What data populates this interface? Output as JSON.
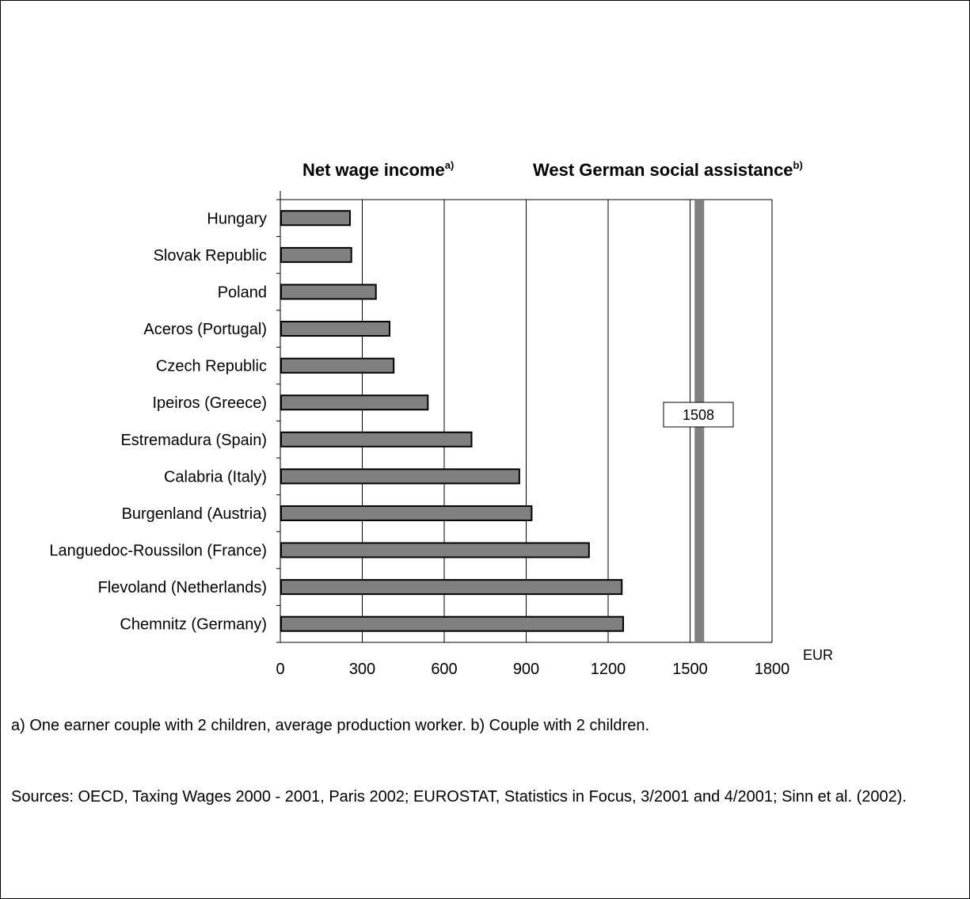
{
  "chart_data": {
    "type": "bar",
    "orientation": "horizontal",
    "title_left": "Net wage income",
    "title_left_sup": "a)",
    "title_right": "West German social assistance",
    "title_right_sup": "b)",
    "categories": [
      "Hungary",
      "Slovak Republic",
      "Poland",
      "Aceros (Portugal)",
      "Czech Republic",
      "Ipeiros (Greece)",
      "Estremadura (Spain)",
      "Calabria (Italy)",
      "Burgenland (Austria)",
      "Languedoc-Roussilon (France)",
      "Flevoland (Netherlands)",
      "Chemnitz (Germany)"
    ],
    "values": [
      255,
      260,
      350,
      400,
      415,
      540,
      700,
      875,
      920,
      1130,
      1250,
      1255
    ],
    "xlim": [
      0,
      1800
    ],
    "xticks": [
      "0",
      "300",
      "600",
      "900",
      "1200",
      "1500",
      "1800"
    ],
    "x_unit_label": "EUR",
    "reference": {
      "value": 1508,
      "label": "1508"
    },
    "bar_color": "#808080",
    "reference_color": "#808080",
    "grid": "vertical"
  },
  "footnote": "a) One earner couple with 2 children, average production worker. b) Couple with 2 children.",
  "sources": "Sources: OECD, Taxing Wages 2000 - 2001, Paris 2002; EUROSTAT, Statistics in Focus, 3/2001 and 4/2001; Sinn et al. (2002)."
}
